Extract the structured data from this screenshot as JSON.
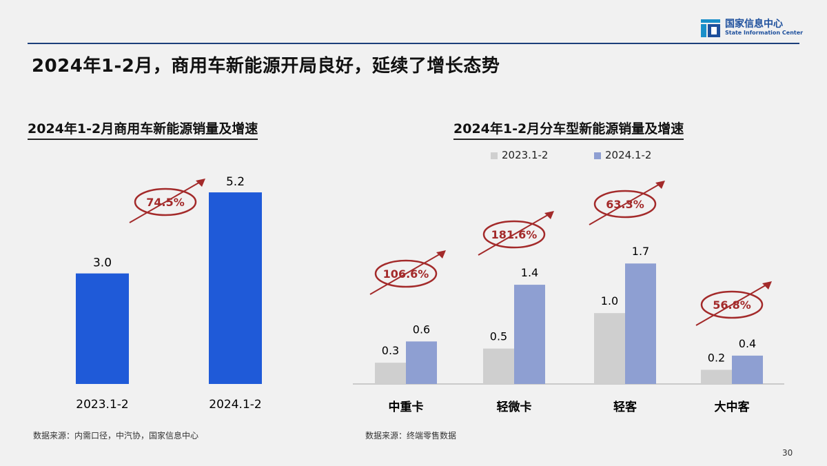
{
  "header": {
    "logo_cn": "国家信息中心",
    "logo_en": "State Information Center",
    "title": "2024年1-2月，商用车新能源开局良好，延续了增长态势"
  },
  "colors": {
    "left_bar": "#1f5ad8",
    "series_2023": "#cfcfcf",
    "series_2024": "#8e9fd2",
    "growth": "#a32a2a",
    "axis": "#bdbdbd"
  },
  "icons": {
    "logo": "state-information-center-logo-icon",
    "growth": "growth-arrow-ellipse-icon"
  },
  "chart_data": [
    {
      "type": "bar",
      "title": "2024年1-2月商用车新能源销量及增速",
      "categories": [
        "2023.1-2",
        "2024.1-2"
      ],
      "values": [
        3.0,
        5.2
      ],
      "value_labels": [
        "3.0",
        "5.2"
      ],
      "ylim": [
        0,
        5.8
      ],
      "growth": "74.5%",
      "grid": false,
      "source": "数据来源：内需口径，中汽协，国家信息中心"
    },
    {
      "type": "bar",
      "title": "2024年1-2月分车型新能源销量及增速",
      "categories": [
        "中重卡",
        "轻微卡",
        "轻客",
        "大中客"
      ],
      "series": [
        {
          "name": "2023.1-2",
          "values": [
            0.3,
            0.5,
            1.0,
            0.2
          ],
          "labels": [
            "0.3",
            "0.5",
            "1.0",
            "0.2"
          ]
        },
        {
          "name": "2024.1-2",
          "values": [
            0.6,
            1.4,
            1.7,
            0.4
          ],
          "labels": [
            "0.6",
            "1.4",
            "1.7",
            "0.4"
          ]
        }
      ],
      "growth": [
        "106.6%",
        "181.6%",
        "63.3%",
        "56.8%"
      ],
      "ylim": [
        0,
        2.14
      ],
      "legend": "top",
      "grid": false,
      "source": "数据来源：终端零售数据"
    }
  ],
  "page_number": "30"
}
